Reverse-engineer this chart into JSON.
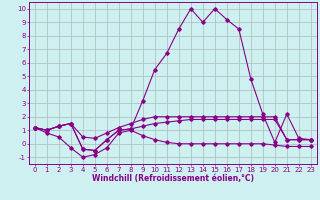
{
  "x": [
    0,
    1,
    2,
    3,
    4,
    5,
    6,
    7,
    8,
    9,
    10,
    11,
    12,
    13,
    14,
    15,
    16,
    17,
    18,
    19,
    20,
    21,
    22,
    23
  ],
  "line1_y": [
    1.2,
    0.8,
    0.5,
    -0.3,
    -1.0,
    -0.8,
    -0.3,
    0.8,
    1.0,
    0.6,
    0.3,
    0.1,
    0.0,
    0.0,
    0.0,
    0.0,
    0.0,
    0.0,
    0.0,
    0.0,
    -0.1,
    -0.2,
    -0.2,
    -0.2
  ],
  "line2_y": [
    1.2,
    1.0,
    1.3,
    1.5,
    -0.4,
    -0.5,
    0.3,
    1.0,
    1.1,
    3.2,
    5.5,
    6.7,
    8.5,
    10.0,
    9.0,
    10.0,
    9.2,
    8.5,
    4.8,
    2.2,
    0.1,
    2.2,
    0.4,
    0.3
  ],
  "line3_y": [
    1.2,
    1.0,
    1.3,
    1.5,
    0.5,
    0.4,
    0.8,
    1.2,
    1.5,
    1.8,
    2.0,
    2.0,
    2.0,
    2.0,
    2.0,
    2.0,
    2.0,
    2.0,
    2.0,
    2.0,
    2.0,
    0.3,
    0.3,
    0.3
  ],
  "line4_y": [
    1.2,
    1.0,
    1.3,
    1.5,
    -0.4,
    -0.5,
    0.3,
    1.0,
    1.1,
    1.3,
    1.5,
    1.6,
    1.7,
    1.8,
    1.8,
    1.8,
    1.8,
    1.8,
    1.8,
    1.8,
    1.8,
    0.3,
    0.3,
    0.3
  ],
  "line_color": "#880088",
  "bg_color": "#cff0f0",
  "grid_color": "#aabcbc",
  "xlabel": "Windchill (Refroidissement éolien,°C)",
  "ylim": [
    -1.5,
    10.5
  ],
  "xlim": [
    -0.5,
    23.5
  ],
  "xlabel_fontsize": 5.5,
  "tick_fontsize": 5.0
}
